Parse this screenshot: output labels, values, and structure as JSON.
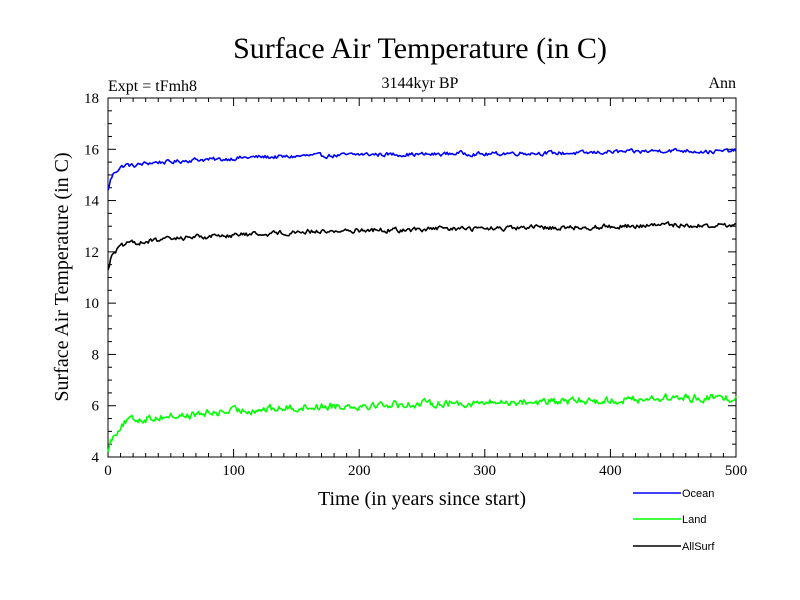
{
  "chart_data": {
    "type": "line",
    "title": "Surface Air Temperature (in C)",
    "subtitle": "3144kyr BP",
    "left_label": "Expt = tFmh8",
    "right_label": "Ann",
    "xlabel": "Time (in years since start)",
    "ylabel": "Surface Air Temperature (in C)",
    "xlim": [
      0,
      500
    ],
    "ylim": [
      4,
      18
    ],
    "x_ticks": [
      0,
      100,
      200,
      300,
      400,
      500
    ],
    "y_ticks": [
      4,
      6,
      8,
      10,
      12,
      14,
      16,
      18
    ],
    "grid": false,
    "legend_position": "bottom-right, below plot",
    "series": [
      {
        "name": "Ocean",
        "color": "#0000ff",
        "x": [
          0,
          2,
          5,
          10,
          15,
          20,
          30,
          40,
          50,
          60,
          70,
          80,
          90,
          100,
          120,
          140,
          160,
          180,
          200,
          220,
          240,
          260,
          280,
          300,
          320,
          340,
          360,
          380,
          400,
          420,
          440,
          460,
          480,
          500
        ],
        "values": [
          14.4,
          14.8,
          15.1,
          15.3,
          15.4,
          15.35,
          15.45,
          15.5,
          15.5,
          15.55,
          15.6,
          15.6,
          15.6,
          15.65,
          15.7,
          15.7,
          15.75,
          15.75,
          15.8,
          15.8,
          15.8,
          15.8,
          15.85,
          15.8,
          15.85,
          15.85,
          15.85,
          15.85,
          15.9,
          15.9,
          15.95,
          15.95,
          15.9,
          15.95
        ]
      },
      {
        "name": "Land",
        "color": "#00ff00",
        "x": [
          0,
          2,
          5,
          10,
          15,
          20,
          30,
          40,
          50,
          60,
          70,
          80,
          90,
          100,
          120,
          140,
          160,
          180,
          200,
          220,
          240,
          260,
          280,
          300,
          320,
          340,
          360,
          380,
          400,
          420,
          440,
          460,
          480,
          500
        ],
        "values": [
          4.2,
          4.6,
          4.9,
          5.2,
          5.4,
          5.45,
          5.5,
          5.55,
          5.6,
          5.6,
          5.65,
          5.7,
          5.75,
          5.8,
          5.85,
          5.9,
          5.95,
          6.0,
          6.0,
          6.05,
          6.05,
          6.1,
          6.1,
          6.1,
          6.15,
          6.15,
          6.15,
          6.2,
          6.2,
          6.25,
          6.3,
          6.3,
          6.3,
          6.3
        ]
      },
      {
        "name": "AllSurf",
        "color": "#000000",
        "x": [
          0,
          2,
          5,
          10,
          15,
          20,
          30,
          40,
          50,
          60,
          70,
          80,
          90,
          100,
          120,
          140,
          160,
          180,
          200,
          220,
          240,
          260,
          280,
          300,
          320,
          340,
          360,
          380,
          400,
          420,
          440,
          460,
          480,
          500
        ],
        "values": [
          11.3,
          11.7,
          12.0,
          12.2,
          12.3,
          12.35,
          12.4,
          12.45,
          12.5,
          12.55,
          12.6,
          12.6,
          12.65,
          12.65,
          12.7,
          12.75,
          12.8,
          12.8,
          12.85,
          12.85,
          12.85,
          12.9,
          12.9,
          12.9,
          12.9,
          12.95,
          12.95,
          12.95,
          13.0,
          13.0,
          13.05,
          13.05,
          13.0,
          13.05
        ]
      }
    ]
  }
}
